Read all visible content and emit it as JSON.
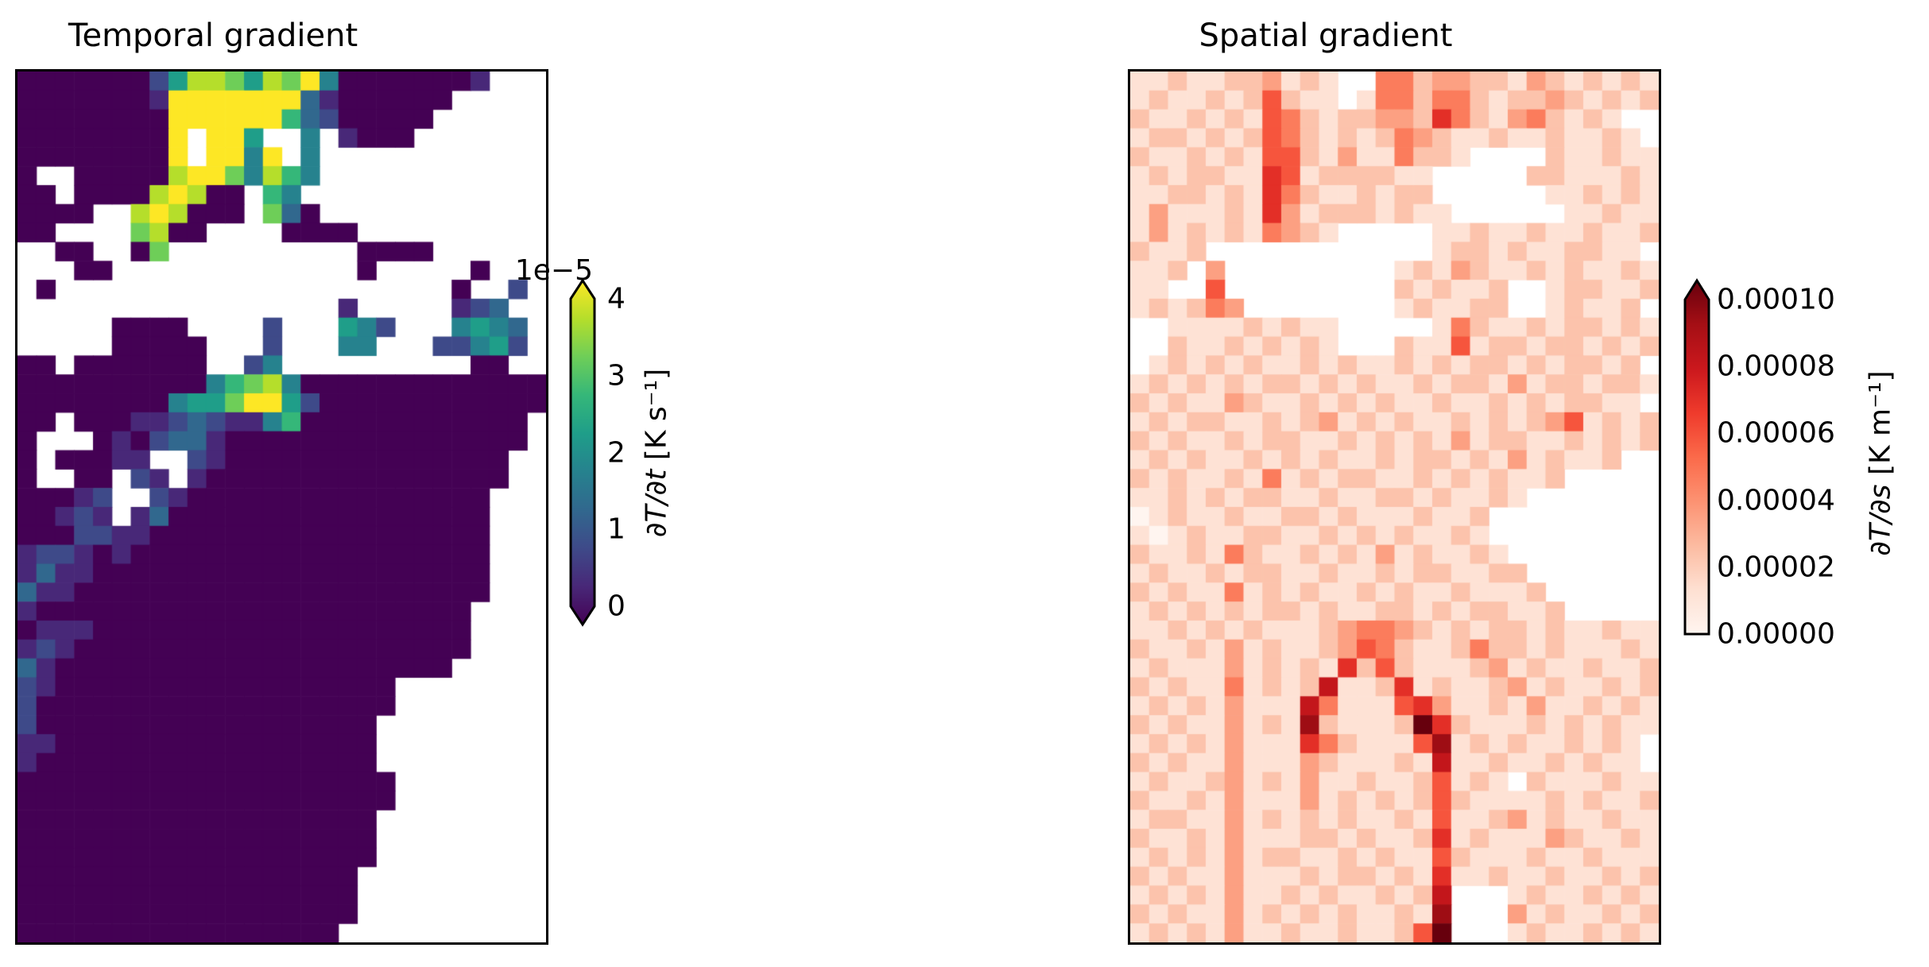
{
  "figure": {
    "background": "#ffffff",
    "border_color": "#000000",
    "grid_cols": 28,
    "grid_rows": 46,
    "nan_char": ".",
    "cell_encoding": "digit 0-9 = fraction of colorbar range (value = digit/9 x range_max); '.' = missing data (white)"
  },
  "chart_data": [
    {
      "type": "heatmap",
      "title": "Temporal gradient",
      "colormap": "viridis",
      "colorbar": {
        "label_var": "∂T/∂t",
        "label_units": " [K s⁻¹]",
        "offset_text": "1e−5",
        "ticks_bottom_to_top": [
          "0",
          "1",
          "2",
          "3",
          "4"
        ],
        "vmin": 0,
        "vmax": 4e-05,
        "extend": "both"
      },
      "grid": [
        "0000000258875879400000001...",
        "00000001999999931000000.....",
        "0000000099999963200000......",
        "000000009.995..4.1000.......",
        "000000009.9949.4............",
        "0..0000089974864............",
        "00.000089800.64.............",
        "0000..898000.730............",
        "00....7800....0000..........",
        "..00..07..........0000......",
        "...00.............0.....0...",
        ".0.....................0..2.",
        ".................1.....123..",
        ".....0000....2...542...4543.",
        ".....00000...2...44...22452.",
        "00.0000000..24..........00..",
        "0000000000467840000000000000",
        "0000000045579952000000000000",
        "00.000112321146000000000000.",
        "0...01023310000000000000000.",
        "0.00011..21000000000000000..",
        "0..00.21.10000000000000000..",
        "00012..210000000000000000...",
        "00121.1300000000000000000...",
        "0002211000000000000000000...",
        "1221010000000000000000000...",
        "1311000000000000000000000...",
        "3110000000000000000000000...",
        "100000000000000000000000....",
        "011100000000000000000000....",
        "121000000000000000000000....",
        "31000000000000000000000.....",
        "21000000000000000000........",
        "20000000000000000000........",
        "2000000000000000000.........",
        "1100000000000000000.........",
        "1000000000000000000.........",
        "00000000000000000000........",
        "00000000000000000000........",
        "0000000000000000000.........",
        "0000000000000000000.........",
        "0000000000000000000.........",
        "000000000000000000..........",
        "000000000000000000..........",
        "000000000000000000..........",
        "00000000000000000..........."
      ]
    },
    {
      "type": "heatmap",
      "title": "Spatial gradient",
      "colormap": "reds",
      "colorbar": {
        "label_var": "∂T/∂s",
        "label_units": " [K m⁻¹]",
        "offset_text": "",
        "ticks_bottom_to_top": [
          "0.00000",
          "0.00002",
          "0.00004",
          "0.00006",
          "0.00008",
          "0.00010"
        ],
        "vmin": 0,
        "vmax": 0.0001,
        "extend": "max"
      },
      "grid": [
        "11211223121..442332213212121",
        "12112125211.1442442122321212",
        "21121215421223326421342121..",
        "122121254212124321121121121.",
        "211212155213114221....211211",
        "1212211651222211.....2211121",
        "1122121642112122......112121",
        "13111216312221211......11211",
        "13121214321.....112112112112",
        "2112............12212112211.",
        "112.3.........12132112121121",
        "11..5.........212112..122112",
        "121243........121122..12112.",
        "..111121211.....142112122121",
        "..211212121...21151221221212",
        ".12121211212112121221212212.",
        "1212121221212112122131221221",
        "212113211212121121121212211.",
        "1212211212312121121212351212",
        "2121121221121212131221121212",
        "12121121212112122121312112..",
        "21211214121221121212112.....",
        "112121221121122121121.......",
        "0121121122121112112.........",
        "1012112211212121121.........",
        "21121421121213121121........",
        "121121221121121221122.......",
        "2121141212112121121112......",
        "12121212212112212122112.....",
        "1121212111234432121221211211",
        "2112131211235421124221211121",
        "1211131212162521112312112112",
        "2121141212711261211231211212",
        "1212131117411156311213112121",
        "2121131218211129621112121211",
        "121213111642111581212112121.",
        "212113111321112171121121211.",
        "12112312131121125121.2111211",
        "2112131113121212521111212112",
        "1221131212121121511231211211",
        "2112131112212112612111321121",
        "1212131221121211521112112111",
        "2121131112122121611211211212",
        "12121311212112127...12112121",
        "21211312121211218...31211212",
        "12121311211211259...12112121"
      ]
    }
  ],
  "colormaps": {
    "viridis": [
      "#440154",
      "#482878",
      "#3e4a89",
      "#31688e",
      "#26828e",
      "#1f9e89",
      "#35b779",
      "#6ece58",
      "#b5de2b",
      "#fde725"
    ],
    "reds": [
      "#fff5f0",
      "#fee0d2",
      "#fcbba1",
      "#fc9272",
      "#fb6a4a",
      "#ef3b2c",
      "#cb181d",
      "#a50f15",
      "#67000d"
    ]
  }
}
